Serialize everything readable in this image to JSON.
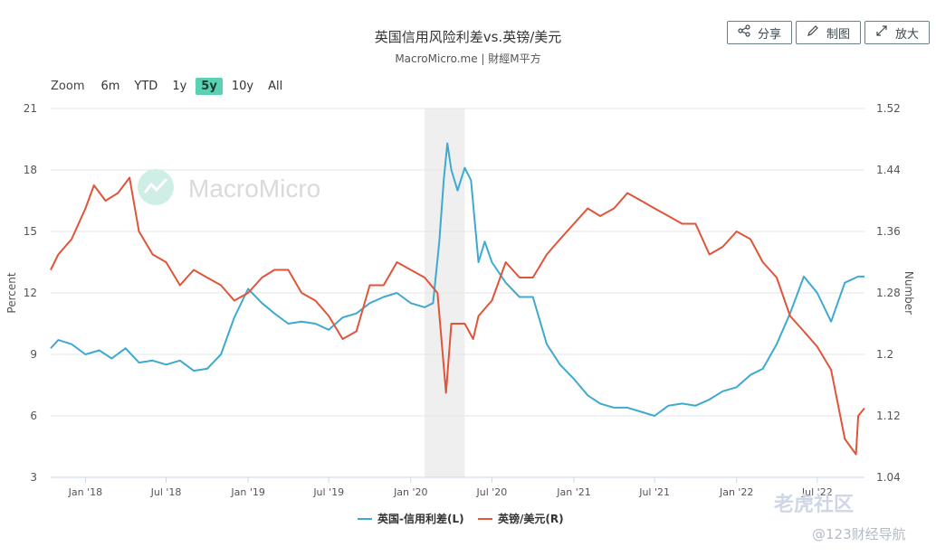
{
  "title": "英国信用风险利差vs.英镑/美元",
  "subtitle": "MacroMicro.me | 財經M平方",
  "buttons": {
    "share": "分享",
    "draw": "制图",
    "enlarge": "放大"
  },
  "zoom": {
    "label": "Zoom",
    "options": [
      "6m",
      "YTD",
      "1y",
      "5y",
      "10y",
      "All"
    ],
    "active": "5y"
  },
  "watermark": "MacroMicro",
  "corner_watermark": {
    "brand": "老虎社区",
    "site": "@123财经导航"
  },
  "chart_data": {
    "type": "line",
    "title": "英国信用风险利差vs.英镑/美元",
    "xlabel": "",
    "ylabel_left": "Percent",
    "ylabel_right": "Number",
    "ylim_left": [
      3,
      21
    ],
    "ylim_right": [
      1.04,
      1.52
    ],
    "yticks_left": [
      3,
      6,
      9,
      12,
      15,
      18,
      21
    ],
    "yticks_right": [
      "1.04",
      "1.12",
      "1.2",
      "1.28",
      "1.36",
      "1.44",
      "1.52"
    ],
    "xlim": [
      "2017-10-15",
      "2022-10-15"
    ],
    "xticks": [
      {
        "date": "2018-01-01",
        "label": "Jan '18"
      },
      {
        "date": "2018-07-01",
        "label": "Jul '18"
      },
      {
        "date": "2019-01-01",
        "label": "Jan '19"
      },
      {
        "date": "2019-07-01",
        "label": "Jul '19"
      },
      {
        "date": "2020-01-01",
        "label": "Jan '20"
      },
      {
        "date": "2020-07-01",
        "label": "Jul '20"
      },
      {
        "date": "2021-01-01",
        "label": "Jan '21"
      },
      {
        "date": "2021-07-01",
        "label": "Jul '21"
      },
      {
        "date": "2022-01-01",
        "label": "Jan '22"
      },
      {
        "date": "2022-07-01",
        "label": "Jul '22"
      }
    ],
    "shaded_region": [
      "2020-02-01",
      "2020-05-01"
    ],
    "grid": true,
    "legend_position": "bottom-center",
    "series": [
      {
        "name": "英国-信用利差(L)",
        "axis": "left",
        "color": "#3fa9cf",
        "points": [
          [
            "2017-10-15",
            9.3
          ],
          [
            "2017-11-01",
            9.7
          ],
          [
            "2017-12-01",
            9.5
          ],
          [
            "2018-01-01",
            9.0
          ],
          [
            "2018-02-01",
            9.2
          ],
          [
            "2018-03-01",
            8.8
          ],
          [
            "2018-04-01",
            9.3
          ],
          [
            "2018-05-01",
            8.6
          ],
          [
            "2018-06-01",
            8.7
          ],
          [
            "2018-07-01",
            8.5
          ],
          [
            "2018-08-01",
            8.7
          ],
          [
            "2018-09-01",
            8.2
          ],
          [
            "2018-10-01",
            8.3
          ],
          [
            "2018-11-01",
            9.0
          ],
          [
            "2018-12-01",
            10.8
          ],
          [
            "2019-01-01",
            12.2
          ],
          [
            "2019-02-01",
            11.5
          ],
          [
            "2019-03-01",
            11.0
          ],
          [
            "2019-04-01",
            10.5
          ],
          [
            "2019-05-01",
            10.6
          ],
          [
            "2019-06-01",
            10.5
          ],
          [
            "2019-07-01",
            10.2
          ],
          [
            "2019-08-01",
            10.8
          ],
          [
            "2019-09-01",
            11.0
          ],
          [
            "2019-10-01",
            11.5
          ],
          [
            "2019-11-01",
            11.8
          ],
          [
            "2019-12-01",
            12.0
          ],
          [
            "2020-01-01",
            11.5
          ],
          [
            "2020-02-01",
            11.3
          ],
          [
            "2020-02-20",
            11.5
          ],
          [
            "2020-03-05",
            14.5
          ],
          [
            "2020-03-15",
            17.5
          ],
          [
            "2020-03-23",
            19.3
          ],
          [
            "2020-04-01",
            18.0
          ],
          [
            "2020-04-15",
            17.0
          ],
          [
            "2020-05-01",
            18.1
          ],
          [
            "2020-05-15",
            17.5
          ],
          [
            "2020-06-01",
            13.5
          ],
          [
            "2020-06-15",
            14.5
          ],
          [
            "2020-07-01",
            13.5
          ],
          [
            "2020-08-01",
            12.5
          ],
          [
            "2020-09-01",
            11.8
          ],
          [
            "2020-10-01",
            11.8
          ],
          [
            "2020-11-01",
            9.5
          ],
          [
            "2020-12-01",
            8.5
          ],
          [
            "2021-01-01",
            7.8
          ],
          [
            "2021-02-01",
            7.0
          ],
          [
            "2021-03-01",
            6.6
          ],
          [
            "2021-04-01",
            6.4
          ],
          [
            "2021-05-01",
            6.4
          ],
          [
            "2021-06-01",
            6.2
          ],
          [
            "2021-07-01",
            6.0
          ],
          [
            "2021-08-01",
            6.5
          ],
          [
            "2021-09-01",
            6.6
          ],
          [
            "2021-10-01",
            6.5
          ],
          [
            "2021-11-01",
            6.8
          ],
          [
            "2021-12-01",
            7.2
          ],
          [
            "2022-01-01",
            7.4
          ],
          [
            "2022-02-01",
            8.0
          ],
          [
            "2022-03-01",
            8.3
          ],
          [
            "2022-04-01",
            9.5
          ],
          [
            "2022-05-01",
            11.0
          ],
          [
            "2022-06-01",
            12.8
          ],
          [
            "2022-07-01",
            12.0
          ],
          [
            "2022-08-01",
            10.6
          ],
          [
            "2022-09-01",
            12.5
          ],
          [
            "2022-10-01",
            12.8
          ],
          [
            "2022-10-15",
            12.8
          ]
        ]
      },
      {
        "name": "英镑/美元(R)",
        "axis": "right",
        "color": "#e0543a",
        "points": [
          [
            "2017-10-15",
            1.31
          ],
          [
            "2017-11-01",
            1.33
          ],
          [
            "2017-12-01",
            1.35
          ],
          [
            "2018-01-01",
            1.39
          ],
          [
            "2018-01-20",
            1.42
          ],
          [
            "2018-02-15",
            1.4
          ],
          [
            "2018-03-15",
            1.41
          ],
          [
            "2018-04-10",
            1.43
          ],
          [
            "2018-05-01",
            1.36
          ],
          [
            "2018-06-01",
            1.33
          ],
          [
            "2018-07-01",
            1.32
          ],
          [
            "2018-08-01",
            1.29
          ],
          [
            "2018-09-01",
            1.31
          ],
          [
            "2018-10-01",
            1.3
          ],
          [
            "2018-11-01",
            1.29
          ],
          [
            "2018-12-01",
            1.27
          ],
          [
            "2019-01-01",
            1.28
          ],
          [
            "2019-02-01",
            1.3
          ],
          [
            "2019-03-01",
            1.31
          ],
          [
            "2019-04-01",
            1.31
          ],
          [
            "2019-05-01",
            1.28
          ],
          [
            "2019-06-01",
            1.27
          ],
          [
            "2019-07-01",
            1.25
          ],
          [
            "2019-08-01",
            1.22
          ],
          [
            "2019-09-01",
            1.23
          ],
          [
            "2019-10-01",
            1.29
          ],
          [
            "2019-11-01",
            1.29
          ],
          [
            "2019-12-01",
            1.32
          ],
          [
            "2020-01-01",
            1.31
          ],
          [
            "2020-02-01",
            1.3
          ],
          [
            "2020-03-01",
            1.28
          ],
          [
            "2020-03-20",
            1.15
          ],
          [
            "2020-04-01",
            1.24
          ],
          [
            "2020-05-01",
            1.24
          ],
          [
            "2020-05-20",
            1.22
          ],
          [
            "2020-06-01",
            1.25
          ],
          [
            "2020-07-01",
            1.27
          ],
          [
            "2020-08-01",
            1.32
          ],
          [
            "2020-09-01",
            1.3
          ],
          [
            "2020-10-01",
            1.3
          ],
          [
            "2020-11-01",
            1.33
          ],
          [
            "2020-12-01",
            1.35
          ],
          [
            "2021-01-01",
            1.37
          ],
          [
            "2021-02-01",
            1.39
          ],
          [
            "2021-03-01",
            1.38
          ],
          [
            "2021-04-01",
            1.39
          ],
          [
            "2021-05-01",
            1.41
          ],
          [
            "2021-06-01",
            1.4
          ],
          [
            "2021-07-01",
            1.39
          ],
          [
            "2021-08-01",
            1.38
          ],
          [
            "2021-09-01",
            1.37
          ],
          [
            "2021-10-01",
            1.37
          ],
          [
            "2021-11-01",
            1.33
          ],
          [
            "2021-12-01",
            1.34
          ],
          [
            "2022-01-01",
            1.36
          ],
          [
            "2022-02-01",
            1.35
          ],
          [
            "2022-03-01",
            1.32
          ],
          [
            "2022-04-01",
            1.3
          ],
          [
            "2022-05-01",
            1.25
          ],
          [
            "2022-06-01",
            1.23
          ],
          [
            "2022-07-01",
            1.21
          ],
          [
            "2022-08-01",
            1.18
          ],
          [
            "2022-09-01",
            1.09
          ],
          [
            "2022-09-26",
            1.07
          ],
          [
            "2022-10-01",
            1.12
          ],
          [
            "2022-10-15",
            1.13
          ]
        ]
      }
    ]
  }
}
